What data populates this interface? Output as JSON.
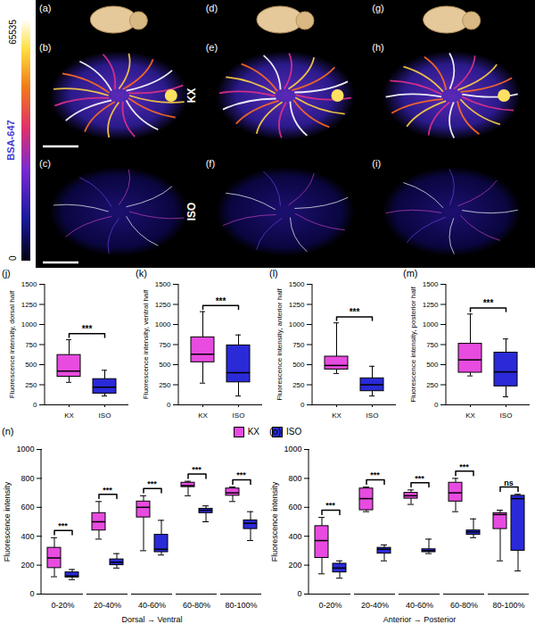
{
  "image_figure": {
    "photo_panels": [
      "(a)",
      "(d)",
      "(g)"
    ],
    "rows": [
      {
        "label": "KX",
        "panels": [
          "(b)",
          "(e)",
          "(h)"
        ]
      },
      {
        "label": "ISO",
        "panels": [
          "(c)",
          "(f)",
          "(i)"
        ]
      }
    ],
    "colorbar": {
      "label": "BSA-647",
      "range": [
        0,
        65535
      ],
      "ticks": [
        0,
        65535
      ]
    }
  },
  "chart_data": [
    {
      "type": "box",
      "panel": "(j)",
      "ylabel": "Fluorescence intensity, dorsal half",
      "categories": [
        "KX",
        "ISO"
      ],
      "colors": [
        "#e84be0",
        "#2a2ad8"
      ],
      "values": [
        {
          "min": 280,
          "q1": 350,
          "median": 420,
          "q3": 620,
          "max": 810
        },
        {
          "min": 110,
          "q1": 140,
          "median": 220,
          "q3": 320,
          "max": 430
        }
      ],
      "significance": [
        "***"
      ],
      "ylim": [
        0,
        1500
      ],
      "yticks": [
        0,
        250,
        500,
        750,
        1000,
        1250,
        1500
      ]
    },
    {
      "type": "box",
      "panel": "(k)",
      "ylabel": "Fluorescence intensity, ventral half",
      "categories": [
        "KX",
        "ISO"
      ],
      "colors": [
        "#e84be0",
        "#2a2ad8"
      ],
      "values": [
        {
          "min": 270,
          "q1": 530,
          "median": 630,
          "q3": 840,
          "max": 1160
        },
        {
          "min": 110,
          "q1": 280,
          "median": 400,
          "q3": 740,
          "max": 870
        }
      ],
      "significance": [
        "***"
      ],
      "ylim": [
        0,
        1500
      ],
      "yticks": [
        0,
        250,
        500,
        750,
        1000,
        1250,
        1500
      ]
    },
    {
      "type": "box",
      "panel": "(l)",
      "ylabel": "Fluorescence intensity, anterior half",
      "categories": [
        "KX",
        "ISO"
      ],
      "colors": [
        "#e84be0",
        "#2a2ad8"
      ],
      "values": [
        {
          "min": 390,
          "q1": 440,
          "median": 490,
          "q3": 600,
          "max": 1020
        },
        {
          "min": 110,
          "q1": 170,
          "median": 250,
          "q3": 330,
          "max": 480
        }
      ],
      "significance": [
        "***"
      ],
      "ylim": [
        0,
        1500
      ],
      "yticks": [
        0,
        250,
        500,
        750,
        1000,
        1250,
        1500
      ]
    },
    {
      "type": "box",
      "panel": "(m)",
      "ylabel": "Fluorescence intensity, posterior half",
      "categories": [
        "KX",
        "ISO"
      ],
      "colors": [
        "#e84be0",
        "#2a2ad8"
      ],
      "values": [
        {
          "min": 360,
          "q1": 400,
          "median": 560,
          "q3": 760,
          "max": 1130
        },
        {
          "min": 100,
          "q1": 230,
          "median": 410,
          "q3": 650,
          "max": 820
        }
      ],
      "significance": [
        "***"
      ],
      "ylim": [
        0,
        1500
      ],
      "yticks": [
        0,
        250,
        500,
        750,
        1000,
        1250,
        1500
      ]
    },
    {
      "type": "box",
      "panel": "(n)",
      "ylabel": "Fluorescence intensity",
      "xlabel": "Dorsal → Ventral",
      "categories": [
        "0-20%",
        "20-40%",
        "40-60%",
        "60-80%",
        "80-100%"
      ],
      "series": [
        {
          "name": "KX",
          "color": "#e84be0",
          "values": [
            {
              "min": 120,
              "q1": 180,
              "median": 250,
              "q3": 320,
              "max": 390
            },
            {
              "min": 380,
              "q1": 440,
              "median": 500,
              "q3": 560,
              "max": 640
            },
            {
              "min": 300,
              "q1": 530,
              "median": 600,
              "q3": 640,
              "max": 680
            },
            {
              "min": 680,
              "q1": 740,
              "median": 750,
              "q3": 770,
              "max": 780
            },
            {
              "min": 640,
              "q1": 680,
              "median": 700,
              "q3": 730,
              "max": 740
            }
          ]
        },
        {
          "name": "ISO",
          "color": "#2a2ad8",
          "values": [
            {
              "min": 100,
              "q1": 115,
              "median": 125,
              "q3": 150,
              "max": 170
            },
            {
              "min": 180,
              "q1": 200,
              "median": 220,
              "q3": 240,
              "max": 280
            },
            {
              "min": 270,
              "q1": 290,
              "median": 310,
              "q3": 410,
              "max": 510
            },
            {
              "min": 500,
              "q1": 560,
              "median": 580,
              "q3": 590,
              "max": 610
            },
            {
              "min": 370,
              "q1": 450,
              "median": 490,
              "q3": 510,
              "max": 570
            }
          ]
        }
      ],
      "significance": [
        "***",
        "***",
        "***",
        "***",
        "***"
      ],
      "ylim": [
        0,
        1000
      ],
      "yticks": [
        0,
        200,
        400,
        600,
        800,
        1000
      ],
      "legend": "top"
    },
    {
      "type": "box",
      "panel": "(o)",
      "ylabel": "Fluorescence intensity",
      "xlabel": "Anterior → Posterior",
      "categories": [
        "0-20%",
        "20-40%",
        "40-60%",
        "60-80%",
        "80-100%"
      ],
      "series": [
        {
          "name": "KX",
          "color": "#e84be0",
          "values": [
            {
              "min": 140,
              "q1": 250,
              "median": 370,
              "q3": 470,
              "max": 530
            },
            {
              "min": 570,
              "q1": 580,
              "median": 660,
              "q3": 730,
              "max": 740
            },
            {
              "min": 620,
              "q1": 660,
              "median": 680,
              "q3": 700,
              "max": 720
            },
            {
              "min": 570,
              "q1": 640,
              "median": 700,
              "q3": 770,
              "max": 800
            },
            {
              "min": 230,
              "q1": 450,
              "median": 550,
              "q3": 560,
              "max": 580
            }
          ]
        },
        {
          "name": "ISO",
          "color": "#2a2ad8",
          "values": [
            {
              "min": 110,
              "q1": 150,
              "median": 180,
              "q3": 210,
              "max": 230
            },
            {
              "min": 230,
              "q1": 280,
              "median": 310,
              "q3": 320,
              "max": 340
            },
            {
              "min": 280,
              "q1": 290,
              "median": 300,
              "q3": 310,
              "max": 380
            },
            {
              "min": 390,
              "q1": 410,
              "median": 430,
              "q3": 440,
              "max": 520
            },
            {
              "min": 160,
              "q1": 300,
              "median": 660,
              "q3": 680,
              "max": 690
            }
          ]
        }
      ],
      "significance": [
        "***",
        "***",
        "***",
        "***",
        "ns"
      ],
      "ylim": [
        0,
        1000
      ],
      "yticks": [
        0,
        200,
        400,
        600,
        800,
        1000
      ]
    }
  ]
}
